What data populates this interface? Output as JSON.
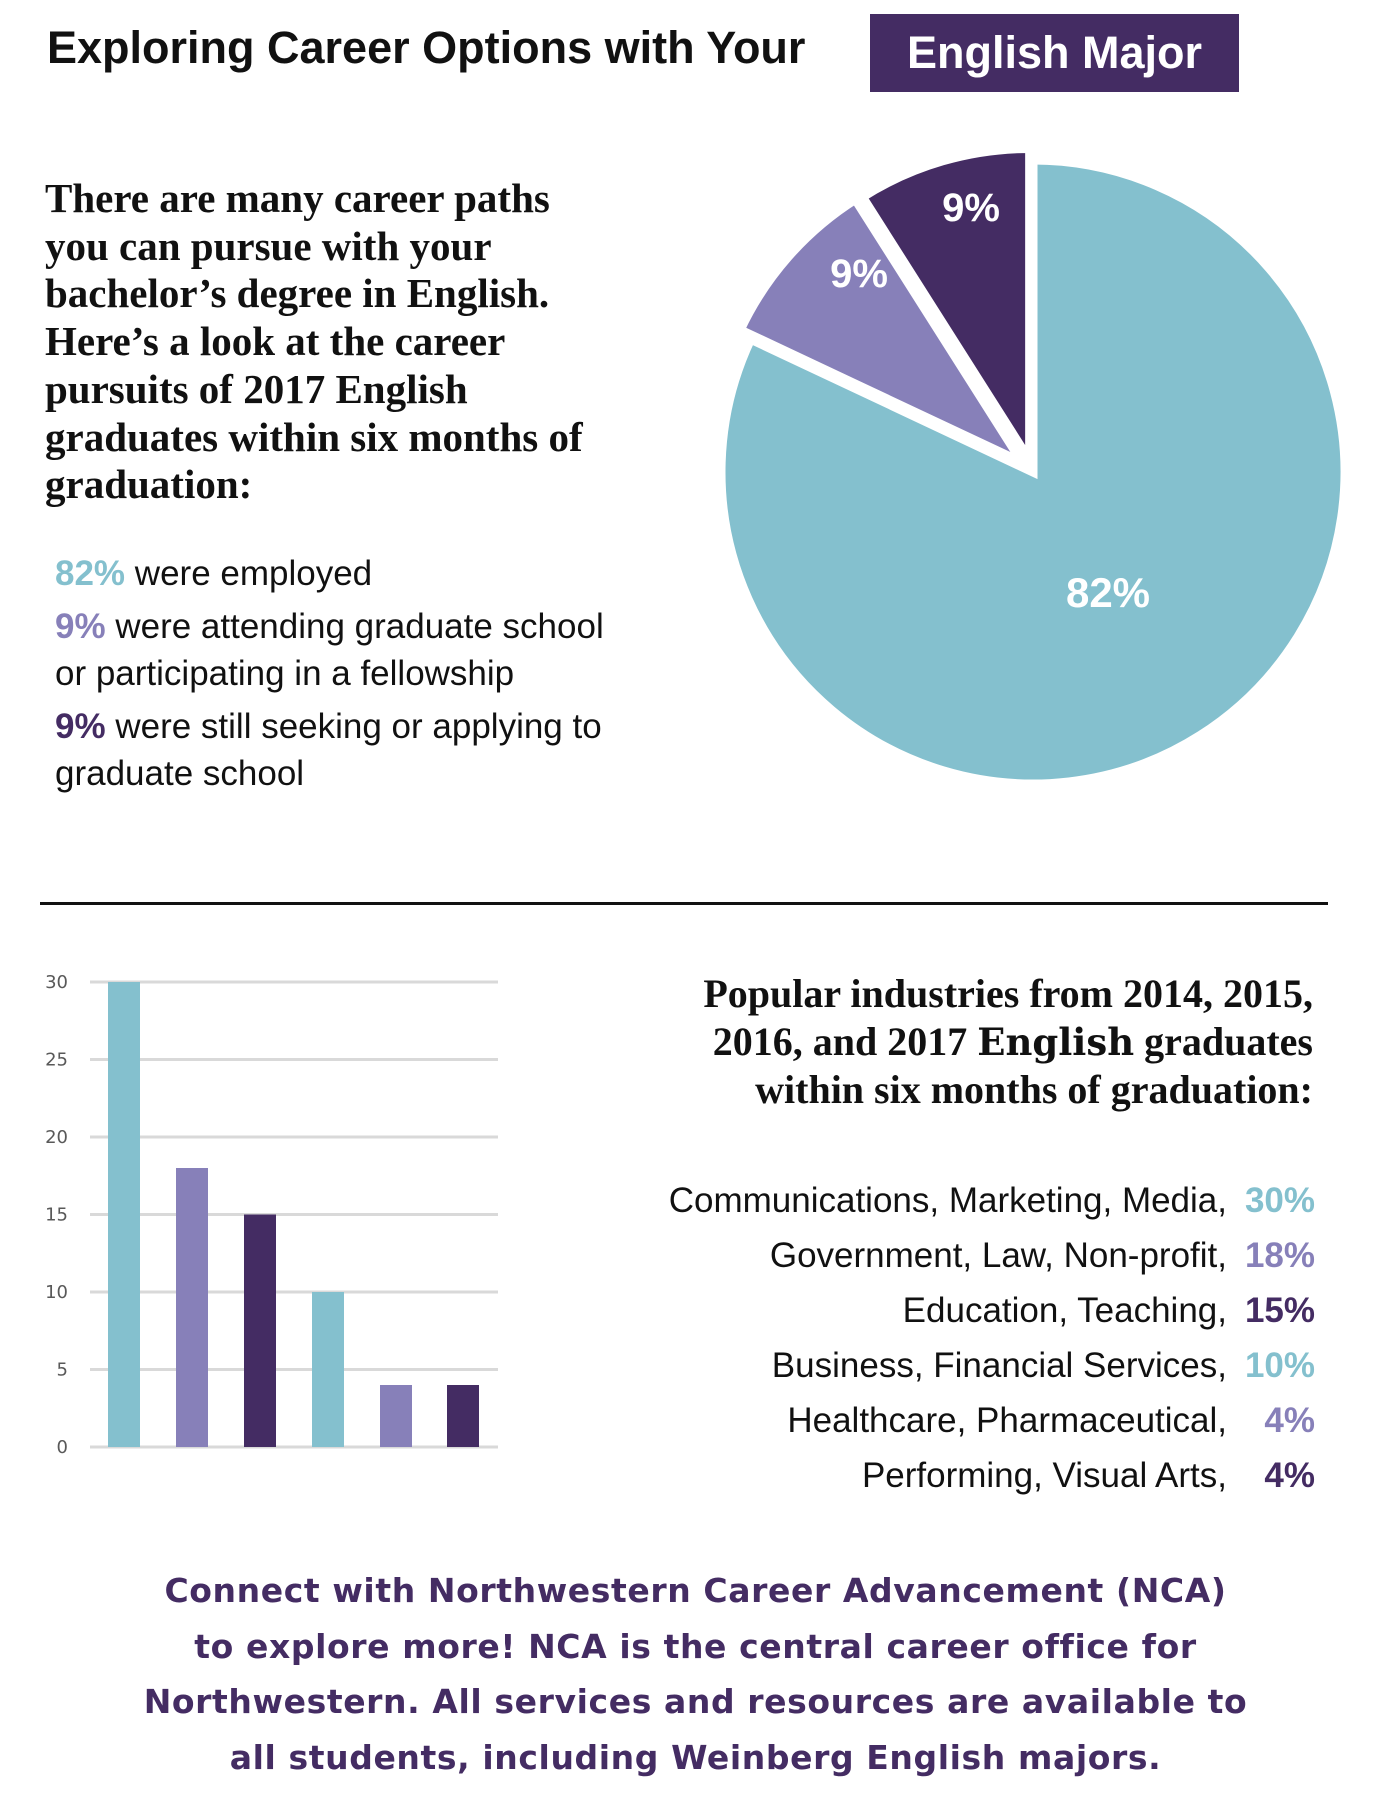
{
  "header": {
    "title": "Exploring Career Options with Your",
    "title_highlight": "English Major"
  },
  "colors": {
    "teal": "#84c0ce",
    "light_purple": "#8780b9",
    "dark_purple": "#442c63"
  },
  "intro": {
    "lines": [
      "There are many career paths",
      "you can pursue with your",
      "bachelor’s degree in English.",
      "Here’s a look at the career",
      "pursuits of 2017 English",
      "graduates within six months of",
      "graduation:"
    ]
  },
  "stats": [
    {
      "pct": "82%",
      "lines": [
        "were employed"
      ],
      "color": "#84c0ce"
    },
    {
      "pct": "9%",
      "lines": [
        "were attending graduate school",
        "or participating in a fellowship"
      ],
      "color": "#8780b9"
    },
    {
      "pct": "9%",
      "lines": [
        "were still seeking or applying to",
        "graduate school"
      ],
      "color": "#442c63"
    }
  ],
  "industries": {
    "title_lines": [
      "Popular industries from 2014, 2015,",
      "2016, and 2017",
      "English",
      "graduates",
      "within six months of graduation:"
    ],
    "items": [
      {
        "label": "Communications, Marketing, Media,",
        "pct": "30%",
        "color": "#84c0ce"
      },
      {
        "label": "Government, Law, Non-profit,",
        "pct": "18%",
        "color": "#8780b9"
      },
      {
        "label": "Education, Teaching,",
        "pct": "15%",
        "color": "#442c63"
      },
      {
        "label": "Business, Financial Services,",
        "pct": "10%",
        "color": "#84c0ce"
      },
      {
        "label": "Healthcare, Pharmaceutical,",
        "pct": "4%",
        "color": "#8780b9"
      },
      {
        "label": "Performing, Visual Arts,",
        "pct": "4%",
        "color": "#442c63"
      }
    ]
  },
  "footer": {
    "lines": [
      "Connect with Northwestern Career Advancement (NCA)",
      "to explore more! NCA is the central career office for",
      "Northwestern. All services and resources are available to",
      "all students, including Weinberg English majors."
    ]
  },
  "chart_data": [
    {
      "type": "pie",
      "slices": [
        {
          "label": "82%",
          "value": 82,
          "color": "#84c0ce"
        },
        {
          "label": "9%",
          "value": 9,
          "color": "#8780b9"
        },
        {
          "label": "9%",
          "value": 9,
          "color": "#442c63"
        }
      ],
      "legend": "none"
    },
    {
      "type": "bar",
      "values": [
        30,
        18,
        15,
        10,
        4,
        4
      ],
      "colors": [
        "#84c0ce",
        "#8780b9",
        "#442c63",
        "#84c0ce",
        "#8780b9",
        "#442c63"
      ],
      "yticks": [
        "0",
        "5",
        "10",
        "15",
        "20",
        "25",
        "30"
      ],
      "ylim": [
        0,
        30
      ],
      "grid": true,
      "xlabel": "",
      "ylabel": ""
    }
  ]
}
